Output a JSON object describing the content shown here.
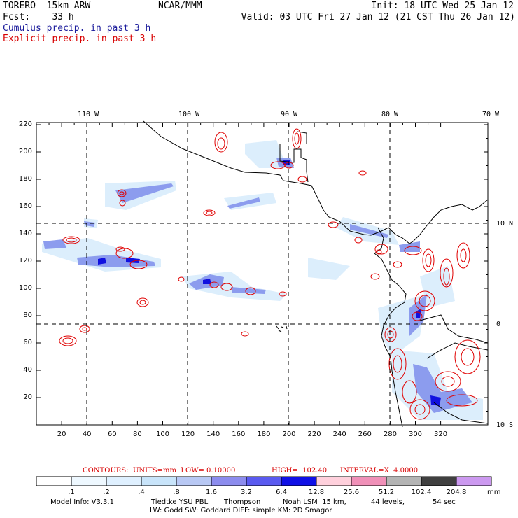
{
  "header": {
    "left_line1": "TORERO  15km ARW",
    "center_line1": "NCAR/MMM",
    "right_line1": "Init: 18 UTC Wed 25 Jan 12",
    "left_line2": "Fcst:    33 h",
    "right_line2": "Valid: 03 UTC Fri 27 Jan 12 (21 CST Thu 26 Jan 12)",
    "line3": "Cumulus precip. in past 3 h",
    "line4": "Explicit precip. in past 3 h"
  },
  "map": {
    "top_lon_labels": [
      "110 W",
      "100 W",
      "90 W",
      "80 W",
      "70 W"
    ],
    "right_lat_labels": [
      "10 N",
      "0",
      "10 S"
    ],
    "left_y_ticks": [
      "20",
      "40",
      "60",
      "80",
      "100",
      "120",
      "140",
      "160",
      "180",
      "200",
      "220"
    ],
    "bottom_x_ticks": [
      "20",
      "40",
      "60",
      "80",
      "100",
      "120",
      "140",
      "160",
      "180",
      "200",
      "220",
      "240",
      "260",
      "280",
      "300",
      "320"
    ],
    "colors": {
      "cumulus": "#3a3adc",
      "explicit": "#e00000",
      "coast": "#000000"
    }
  },
  "contours": {
    "units": "CONTOURS:  UNITS=mm  LOW= 0.10000",
    "high": "HIGH=  102.40",
    "interval": "INTERVAL=X  4.0000"
  },
  "colorbar": {
    "labels": [
      ".1",
      ".2",
      ".4",
      ".8",
      "1.6",
      "3.2",
      "6.4",
      "12.8",
      "25.6",
      "51.2",
      "102.4",
      "204.8"
    ],
    "unit": "mm",
    "colors": [
      "#ffffff",
      "#eef8ff",
      "#dff0ff",
      "#c8e4fa",
      "#b8c8f4",
      "#8c8cee",
      "#5a5af0",
      "#1010e6",
      "#ffd0dc",
      "#f090b8",
      "#b4b4b4",
      "#404040",
      "#cc99f0"
    ]
  },
  "model_info": {
    "line1_a": "Model Info: V3.3.1",
    "line1_b": "Tiedtke YSU PBL",
    "line1_c": "Thompson",
    "line1_d": "Noah LSM  15 km,",
    "line1_e": "44 levels,",
    "line1_f": "54 sec",
    "line2": "LW: Godd SW: Goddard DIFF: simple KM: 2D Smagor"
  }
}
